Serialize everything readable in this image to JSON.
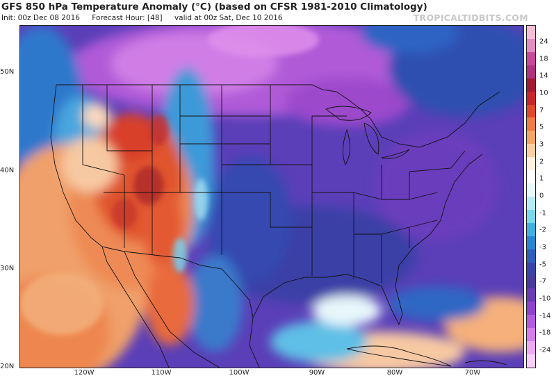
{
  "header": {
    "title": "GFS 850 hPa Temperature Anomaly (°C) (based on CFSR 1981-2010 Climatology)",
    "init": "Init: 00z Dec 08 2016",
    "forecast_hour": "Forecast Hour: [48]",
    "valid": "valid at 00z Sat, Dec 10 2016",
    "credit": "TROPICALTIDBITS.COM"
  },
  "axes": {
    "lat_labels": [
      "50N",
      "40N",
      "30N",
      "20N"
    ],
    "lon_labels": [
      "120W",
      "110W",
      "100W",
      "90W",
      "80W",
      "70W"
    ]
  },
  "colorbar": {
    "labels": [
      "24",
      "18",
      "14",
      "10",
      "7",
      "5",
      "3",
      "2",
      "1",
      "0",
      "-1",
      "-2",
      "-3",
      "-5",
      "-7",
      "-10",
      "-14",
      "-18",
      "-24"
    ],
    "colors": [
      "#f3bfd6",
      "#e08fc0",
      "#c64c9a",
      "#b0337e",
      "#a11a33",
      "#c8262a",
      "#e04a2c",
      "#ef7b45",
      "#f4a56a",
      "#f9cfa2",
      "#fff0e0",
      "#ffffff",
      "#e8f8fb",
      "#b8ecf4",
      "#7ad9ea",
      "#42b0df",
      "#2a86d0",
      "#2f5fba",
      "#3a44a8",
      "#4a3a9c",
      "#6a3cb4",
      "#8e44cc",
      "#b25ce0",
      "#d47fea",
      "#ecaaf2",
      "#f6cff8"
    ]
  }
}
